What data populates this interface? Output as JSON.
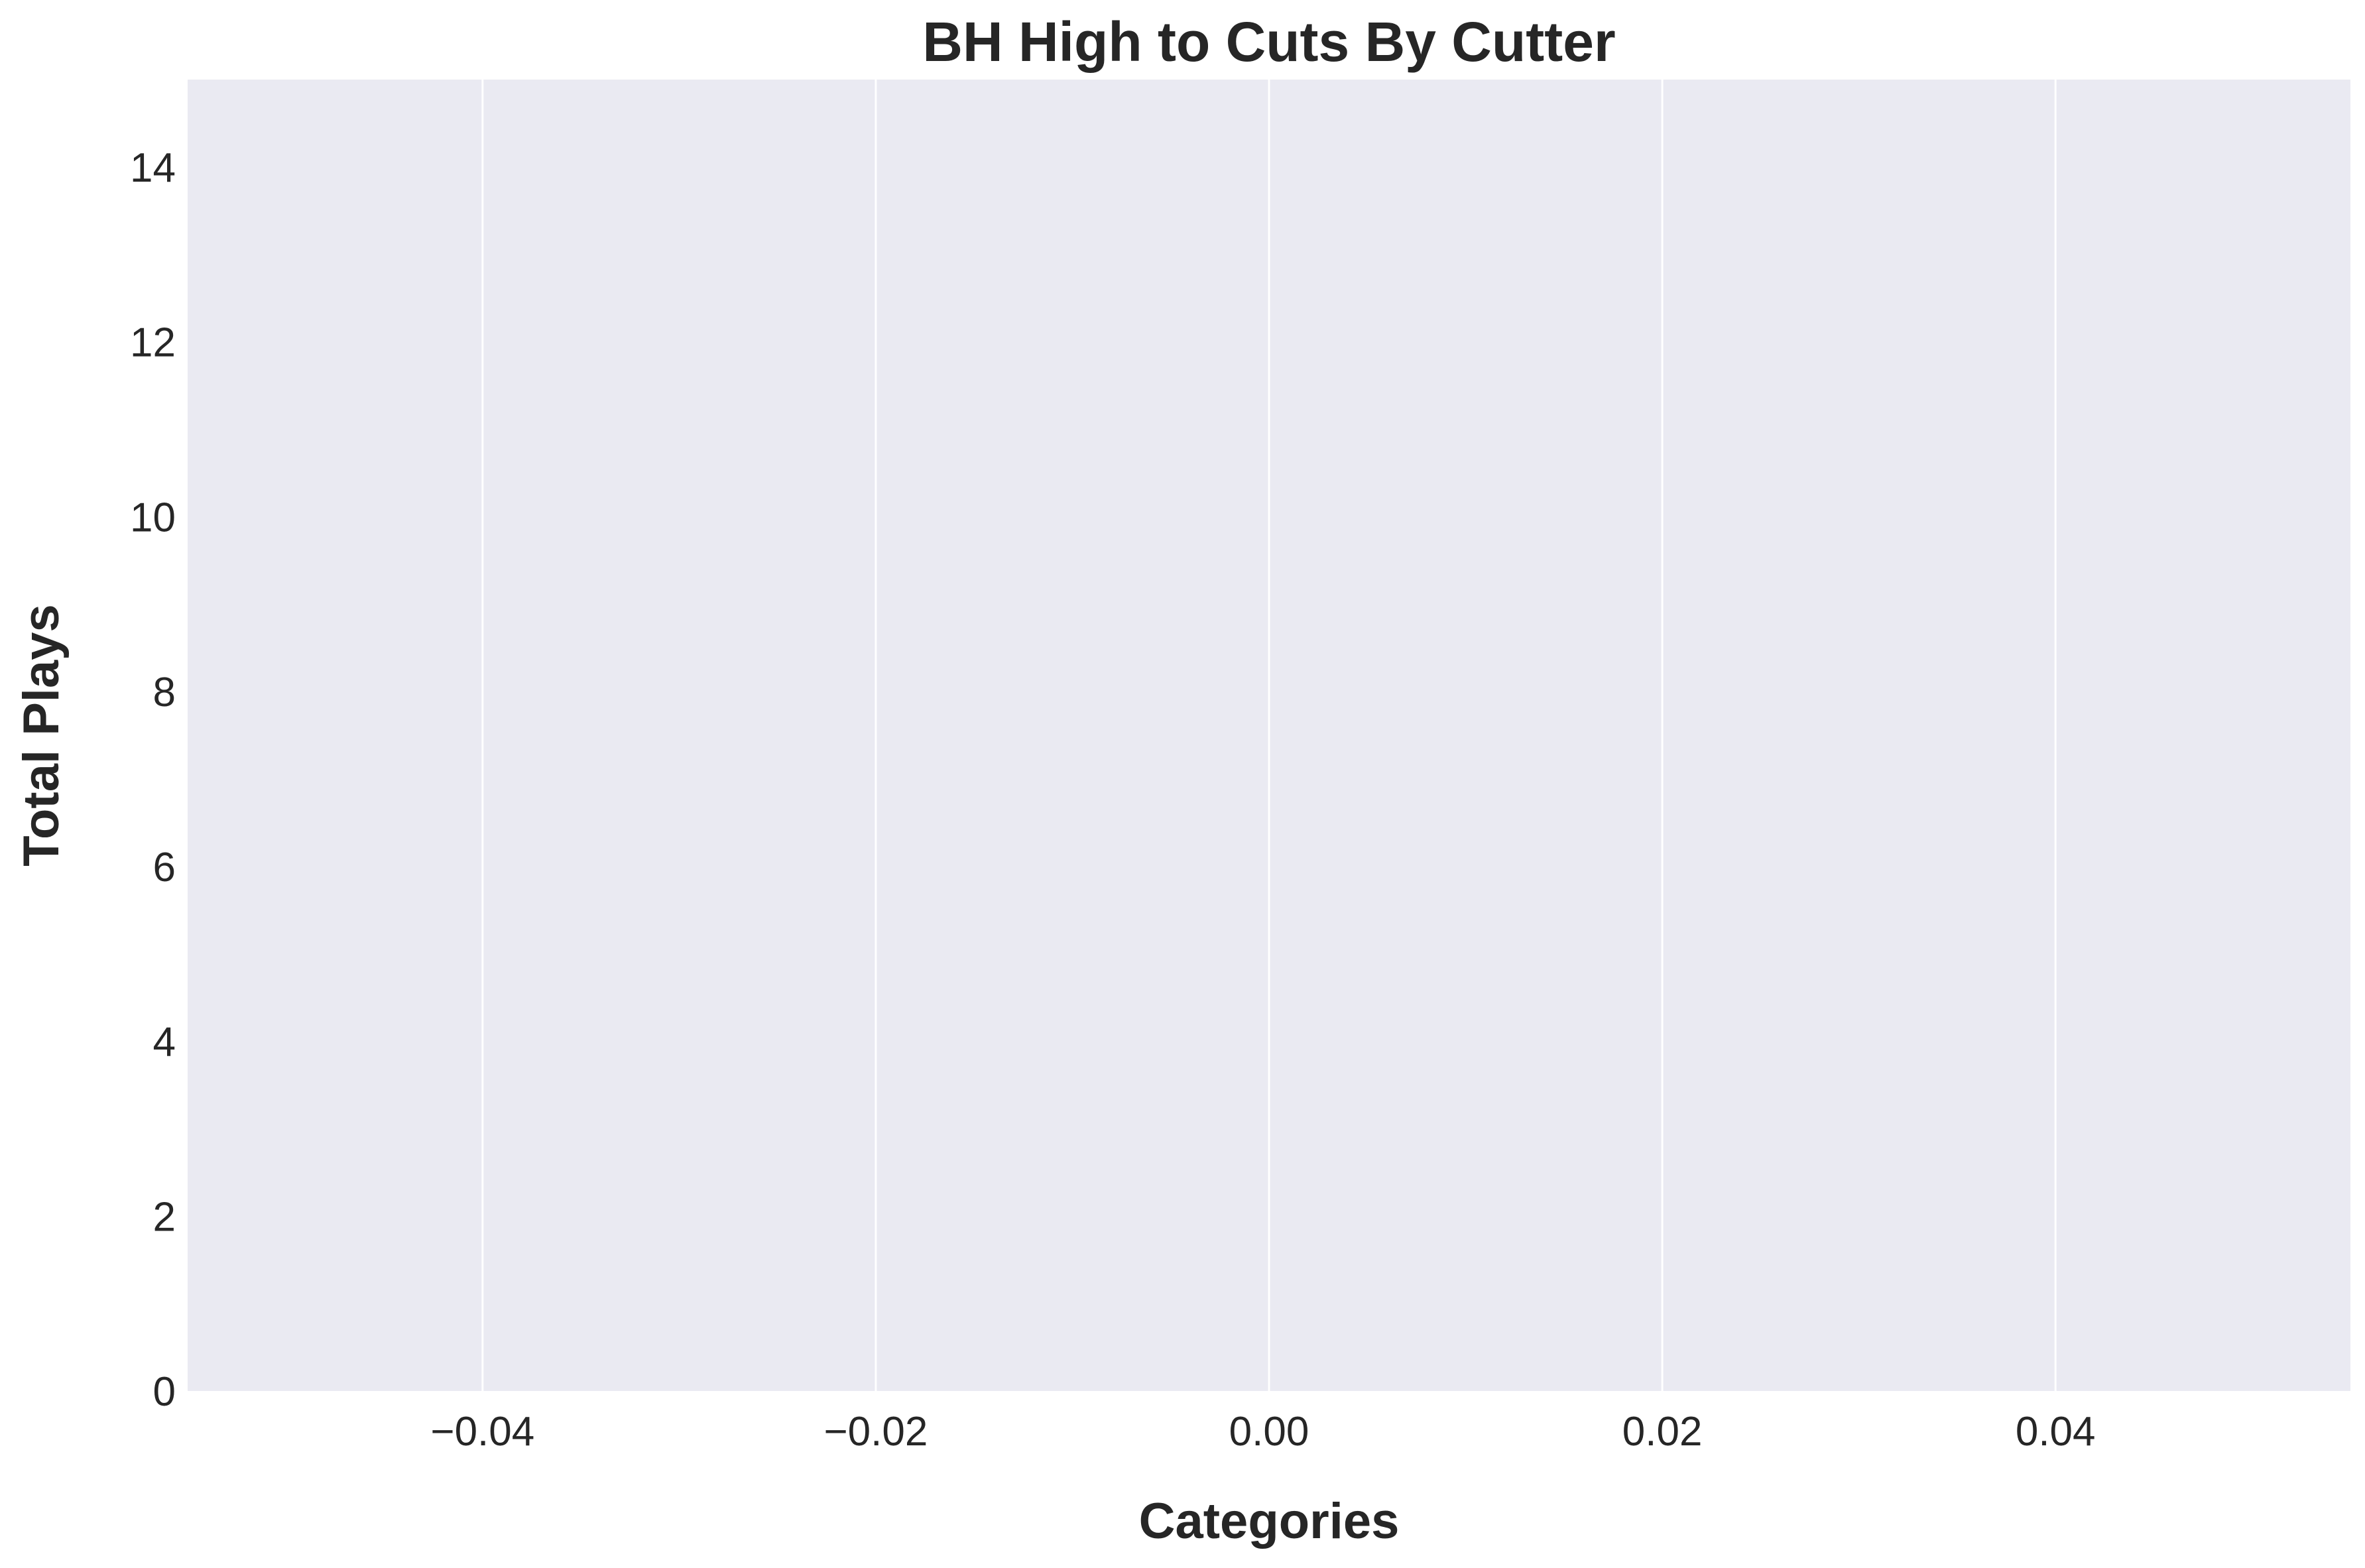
{
  "chart_data": {
    "type": "bar",
    "title": "BH High to Cuts By Cutter",
    "xlabel": "Categories",
    "ylabel": "Total Plays",
    "categories": [],
    "values": [],
    "xlim": [
      -0.055,
      0.055
    ],
    "ylim": [
      0,
      15
    ],
    "xticks": [
      -0.04,
      -0.02,
      0.0,
      0.02,
      0.04
    ],
    "xtick_labels": [
      "−0.04",
      "−0.02",
      "0.00",
      "0.02",
      "0.04"
    ],
    "yticks": [
      0,
      2,
      4,
      6,
      8,
      10,
      12,
      14
    ],
    "ytick_labels": [
      "0",
      "2",
      "4",
      "6",
      "8",
      "10",
      "12",
      "14"
    ],
    "grid": "vertical",
    "legend": "none",
    "colors": {
      "plot_background": "#eaeaf2",
      "grid": "#ffffff",
      "text": "#262626"
    }
  }
}
